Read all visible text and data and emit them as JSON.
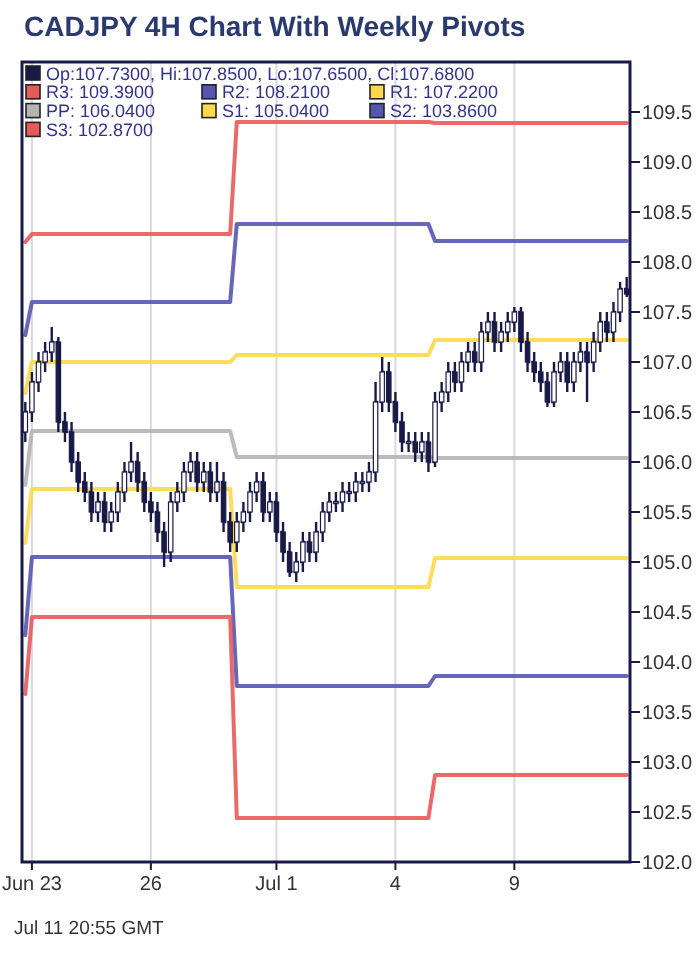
{
  "chart_data": {
    "type": "candlestick",
    "title": "CADJPY 4H Chart With Weekly Pivots",
    "categories": [
      null,
      "Jun 23",
      null,
      null,
      null,
      null,
      null,
      null,
      null,
      null,
      null,
      null,
      null,
      null,
      null,
      null,
      null,
      null,
      null,
      "26",
      null,
      null,
      null,
      null,
      null,
      null,
      null,
      null,
      null,
      null,
      null,
      null,
      null,
      null,
      null,
      null,
      null,
      null,
      "Jul 1",
      null,
      null,
      null,
      null,
      null,
      null,
      null,
      null,
      null,
      null,
      null,
      null,
      null,
      null,
      null,
      null,
      null,
      "4",
      null,
      null,
      null,
      null,
      null,
      null,
      null,
      null,
      null,
      null,
      null,
      null,
      null,
      null,
      null,
      null,
      null,
      "9",
      null,
      null,
      null,
      null,
      null,
      null,
      null,
      null,
      null,
      null,
      null,
      null,
      null,
      null,
      null,
      null,
      null
    ],
    "series": [
      {
        "name": "Op:107.7300, Hi:107.8500, Lo:107.6500, Cl:107.6800",
        "type": "candlestick",
        "color": "#1a1a48",
        "ohlc": [
          [
            106.3,
            106.6,
            106.2,
            106.5
          ],
          [
            106.5,
            106.9,
            106.4,
            106.8
          ],
          [
            106.8,
            107.1,
            106.7,
            107.0
          ],
          [
            107.0,
            107.2,
            106.9,
            107.1
          ],
          [
            107.1,
            107.35,
            107.0,
            107.2
          ],
          [
            107.2,
            107.25,
            106.3,
            106.4
          ],
          [
            106.4,
            106.5,
            106.2,
            106.3
          ],
          [
            106.3,
            106.4,
            105.9,
            106.0
          ],
          [
            106.0,
            106.1,
            105.7,
            105.8
          ],
          [
            105.8,
            105.9,
            105.6,
            105.7
          ],
          [
            105.7,
            105.8,
            105.4,
            105.5
          ],
          [
            105.5,
            105.7,
            105.4,
            105.6
          ],
          [
            105.6,
            105.7,
            105.3,
            105.4
          ],
          [
            105.4,
            105.6,
            105.3,
            105.5
          ],
          [
            105.5,
            105.8,
            105.4,
            105.7
          ],
          [
            105.7,
            106.0,
            105.6,
            105.9
          ],
          [
            105.9,
            106.2,
            105.8,
            106.0
          ],
          [
            106.0,
            106.1,
            105.7,
            105.8
          ],
          [
            105.8,
            105.9,
            105.5,
            105.6
          ],
          [
            105.6,
            105.7,
            105.4,
            105.5
          ],
          [
            105.5,
            105.6,
            105.2,
            105.3
          ],
          [
            105.3,
            105.4,
            104.95,
            105.1
          ],
          [
            105.1,
            105.7,
            105.0,
            105.6
          ],
          [
            105.6,
            105.8,
            105.5,
            105.7
          ],
          [
            105.7,
            106.0,
            105.6,
            105.9
          ],
          [
            105.9,
            106.1,
            105.8,
            106.0
          ],
          [
            106.0,
            106.1,
            105.7,
            105.8
          ],
          [
            105.8,
            106.0,
            105.7,
            105.9
          ],
          [
            105.9,
            106.0,
            105.6,
            105.7
          ],
          [
            105.7,
            106.0,
            105.6,
            105.8
          ],
          [
            105.8,
            105.9,
            105.3,
            105.4
          ],
          [
            105.4,
            105.5,
            105.1,
            105.2
          ],
          [
            105.2,
            105.5,
            105.1,
            105.4
          ],
          [
            105.4,
            105.6,
            105.3,
            105.5
          ],
          [
            105.5,
            105.8,
            105.4,
            105.7
          ],
          [
            105.7,
            105.9,
            105.6,
            105.8
          ],
          [
            105.8,
            105.9,
            105.4,
            105.5
          ],
          [
            105.5,
            105.7,
            105.4,
            105.6
          ],
          [
            105.6,
            105.7,
            105.2,
            105.3
          ],
          [
            105.3,
            105.4,
            105.0,
            105.1
          ],
          [
            105.1,
            105.2,
            104.85,
            104.9
          ],
          [
            104.9,
            105.1,
            104.8,
            105.0
          ],
          [
            105.0,
            105.3,
            104.9,
            105.2
          ],
          [
            105.2,
            105.3,
            105.0,
            105.1
          ],
          [
            105.1,
            105.4,
            105.0,
            105.3
          ],
          [
            105.3,
            105.6,
            105.2,
            105.5
          ],
          [
            105.5,
            105.7,
            105.4,
            105.6
          ],
          [
            105.6,
            105.7,
            105.5,
            105.6
          ],
          [
            105.6,
            105.8,
            105.5,
            105.7
          ],
          [
            105.7,
            105.8,
            105.6,
            105.7
          ],
          [
            105.7,
            105.9,
            105.6,
            105.8
          ],
          [
            105.8,
            105.9,
            105.7,
            105.8
          ],
          [
            105.8,
            106.0,
            105.7,
            105.9
          ],
          [
            105.9,
            106.8,
            105.8,
            106.6
          ],
          [
            106.6,
            107.05,
            106.5,
            106.9
          ],
          [
            106.9,
            107.0,
            106.5,
            106.6
          ],
          [
            106.6,
            106.7,
            106.3,
            106.4
          ],
          [
            106.4,
            106.5,
            106.1,
            106.2
          ],
          [
            106.2,
            106.3,
            106.1,
            106.2
          ],
          [
            106.2,
            106.3,
            106.0,
            106.1
          ],
          [
            106.1,
            106.3,
            106.0,
            106.2
          ],
          [
            106.2,
            106.3,
            105.9,
            106.0
          ],
          [
            106.0,
            106.7,
            105.95,
            106.6
          ],
          [
            106.6,
            106.8,
            106.5,
            106.7
          ],
          [
            106.7,
            107.0,
            106.6,
            106.9
          ],
          [
            106.9,
            107.0,
            106.7,
            106.8
          ],
          [
            106.8,
            107.1,
            106.7,
            107.0
          ],
          [
            107.0,
            107.2,
            106.9,
            107.1
          ],
          [
            107.1,
            107.2,
            106.9,
            107.0
          ],
          [
            107.0,
            107.4,
            106.9,
            107.3
          ],
          [
            107.3,
            107.5,
            107.2,
            107.4
          ],
          [
            107.4,
            107.5,
            107.1,
            107.2
          ],
          [
            107.2,
            107.4,
            107.1,
            107.3
          ],
          [
            107.3,
            107.5,
            107.2,
            107.4
          ],
          [
            107.4,
            107.55,
            107.3,
            107.5
          ],
          [
            107.5,
            107.55,
            107.1,
            107.2
          ],
          [
            107.2,
            107.3,
            106.9,
            107.0
          ],
          [
            107.0,
            107.1,
            106.8,
            106.9
          ],
          [
            106.9,
            107.0,
            106.7,
            106.8
          ],
          [
            106.8,
            106.9,
            106.55,
            106.6
          ],
          [
            106.6,
            107.0,
            106.55,
            106.9
          ],
          [
            106.9,
            107.1,
            106.8,
            107.0
          ],
          [
            107.0,
            107.1,
            106.7,
            106.8
          ],
          [
            106.8,
            107.1,
            106.7,
            107.0
          ],
          [
            107.0,
            107.2,
            106.9,
            107.1
          ],
          [
            107.1,
            107.2,
            106.6,
            107.0
          ],
          [
            107.0,
            107.3,
            106.9,
            107.2
          ],
          [
            107.2,
            107.5,
            107.1,
            107.4
          ],
          [
            107.4,
            107.5,
            107.2,
            107.3
          ],
          [
            107.3,
            107.6,
            107.2,
            107.5
          ],
          [
            107.5,
            107.8,
            107.4,
            107.73
          ],
          [
            107.73,
            107.85,
            107.65,
            107.68
          ]
        ]
      },
      {
        "name": "R3: 109.3900",
        "type": "line",
        "color": "#e85a5a",
        "values": [
          108.2,
          108.28,
          108.28,
          108.28,
          108.28,
          108.28,
          108.28,
          108.28,
          108.28,
          108.28,
          108.28,
          108.28,
          108.28,
          108.28,
          108.28,
          108.28,
          108.28,
          108.28,
          108.28,
          108.28,
          108.28,
          108.28,
          108.28,
          108.28,
          108.28,
          108.28,
          108.28,
          108.28,
          108.28,
          108.28,
          108.28,
          108.28,
          109.4,
          109.4,
          109.4,
          109.4,
          109.4,
          109.4,
          109.4,
          109.4,
          109.4,
          109.4,
          109.4,
          109.4,
          109.4,
          109.4,
          109.4,
          109.4,
          109.4,
          109.4,
          109.4,
          109.4,
          109.4,
          109.4,
          109.4,
          109.4,
          109.4,
          109.4,
          109.4,
          109.4,
          109.4,
          109.4,
          109.39,
          109.39,
          109.39,
          109.39,
          109.39,
          109.39,
          109.39,
          109.39,
          109.39,
          109.39,
          109.39,
          109.39,
          109.39,
          109.39,
          109.39,
          109.39,
          109.39,
          109.39,
          109.39,
          109.39,
          109.39,
          109.39,
          109.39,
          109.39,
          109.39,
          109.39,
          109.39,
          109.39,
          109.39,
          109.39
        ]
      },
      {
        "name": "R2: 108.2100",
        "type": "line",
        "color": "#5656b0",
        "values": [
          107.27,
          107.6,
          107.6,
          107.6,
          107.6,
          107.6,
          107.6,
          107.6,
          107.6,
          107.6,
          107.6,
          107.6,
          107.6,
          107.6,
          107.6,
          107.6,
          107.6,
          107.6,
          107.6,
          107.6,
          107.6,
          107.6,
          107.6,
          107.6,
          107.6,
          107.6,
          107.6,
          107.6,
          107.6,
          107.6,
          107.6,
          107.6,
          108.38,
          108.38,
          108.38,
          108.38,
          108.38,
          108.38,
          108.38,
          108.38,
          108.38,
          108.38,
          108.38,
          108.38,
          108.38,
          108.38,
          108.38,
          108.38,
          108.38,
          108.38,
          108.38,
          108.38,
          108.38,
          108.38,
          108.38,
          108.38,
          108.38,
          108.38,
          108.38,
          108.38,
          108.38,
          108.38,
          108.21,
          108.21,
          108.21,
          108.21,
          108.21,
          108.21,
          108.21,
          108.21,
          108.21,
          108.21,
          108.21,
          108.21,
          108.21,
          108.21,
          108.21,
          108.21,
          108.21,
          108.21,
          108.21,
          108.21,
          108.21,
          108.21,
          108.21,
          108.21,
          108.21,
          108.21,
          108.21,
          108.21,
          108.21,
          108.21
        ]
      },
      {
        "name": "R1: 107.2200",
        "type": "line",
        "color": "#ffd94a",
        "values": [
          106.69,
          107.0,
          107.0,
          107.0,
          107.0,
          107.0,
          107.0,
          107.0,
          107.0,
          107.0,
          107.0,
          107.0,
          107.0,
          107.0,
          107.0,
          107.0,
          107.0,
          107.0,
          107.0,
          107.0,
          107.0,
          107.0,
          107.0,
          107.0,
          107.0,
          107.0,
          107.0,
          107.0,
          107.0,
          107.0,
          107.0,
          107.0,
          107.07,
          107.07,
          107.07,
          107.07,
          107.07,
          107.07,
          107.07,
          107.07,
          107.07,
          107.07,
          107.07,
          107.07,
          107.07,
          107.07,
          107.07,
          107.07,
          107.07,
          107.07,
          107.07,
          107.07,
          107.07,
          107.07,
          107.07,
          107.07,
          107.07,
          107.07,
          107.07,
          107.07,
          107.07,
          107.07,
          107.22,
          107.22,
          107.22,
          107.22,
          107.22,
          107.22,
          107.22,
          107.22,
          107.22,
          107.22,
          107.22,
          107.22,
          107.22,
          107.22,
          107.22,
          107.22,
          107.22,
          107.22,
          107.22,
          107.22,
          107.22,
          107.22,
          107.22,
          107.22,
          107.22,
          107.22,
          107.22,
          107.22,
          107.22,
          107.22
        ]
      },
      {
        "name": "PP: 106.0400",
        "type": "line",
        "color": "#b4b4b4",
        "values": [
          105.77,
          106.31,
          106.31,
          106.31,
          106.31,
          106.31,
          106.31,
          106.31,
          106.31,
          106.31,
          106.31,
          106.31,
          106.31,
          106.31,
          106.31,
          106.31,
          106.31,
          106.31,
          106.31,
          106.31,
          106.31,
          106.31,
          106.31,
          106.31,
          106.31,
          106.31,
          106.31,
          106.31,
          106.31,
          106.31,
          106.31,
          106.31,
          106.05,
          106.05,
          106.05,
          106.05,
          106.05,
          106.05,
          106.05,
          106.05,
          106.05,
          106.05,
          106.05,
          106.05,
          106.05,
          106.05,
          106.05,
          106.05,
          106.05,
          106.05,
          106.05,
          106.05,
          106.05,
          106.05,
          106.05,
          106.05,
          106.05,
          106.05,
          106.05,
          106.05,
          106.05,
          106.05,
          106.04,
          106.04,
          106.04,
          106.04,
          106.04,
          106.04,
          106.04,
          106.04,
          106.04,
          106.04,
          106.04,
          106.04,
          106.04,
          106.04,
          106.04,
          106.04,
          106.04,
          106.04,
          106.04,
          106.04,
          106.04,
          106.04,
          106.04,
          106.04,
          106.04,
          106.04,
          106.04,
          106.04,
          106.04,
          106.04
        ]
      },
      {
        "name": "S1: 105.0400",
        "type": "line",
        "color": "#ffd94a",
        "values": [
          105.19,
          105.73,
          105.73,
          105.73,
          105.73,
          105.73,
          105.73,
          105.73,
          105.73,
          105.73,
          105.73,
          105.73,
          105.73,
          105.73,
          105.73,
          105.73,
          105.73,
          105.73,
          105.73,
          105.73,
          105.73,
          105.73,
          105.73,
          105.73,
          105.73,
          105.73,
          105.73,
          105.73,
          105.73,
          105.73,
          105.73,
          105.73,
          104.75,
          104.75,
          104.75,
          104.75,
          104.75,
          104.75,
          104.75,
          104.75,
          104.75,
          104.75,
          104.75,
          104.75,
          104.75,
          104.75,
          104.75,
          104.75,
          104.75,
          104.75,
          104.75,
          104.75,
          104.75,
          104.75,
          104.75,
          104.75,
          104.75,
          104.75,
          104.75,
          104.75,
          104.75,
          104.75,
          105.04,
          105.04,
          105.04,
          105.04,
          105.04,
          105.04,
          105.04,
          105.04,
          105.04,
          105.04,
          105.04,
          105.04,
          105.04,
          105.04,
          105.04,
          105.04,
          105.04,
          105.04,
          105.04,
          105.04,
          105.04,
          105.04,
          105.04,
          105.04,
          105.04,
          105.04,
          105.04,
          105.04,
          105.04,
          105.04
        ]
      },
      {
        "name": "S2: 103.8600",
        "type": "line",
        "color": "#5656b0",
        "values": [
          104.27,
          105.05,
          105.05,
          105.05,
          105.05,
          105.05,
          105.05,
          105.05,
          105.05,
          105.05,
          105.05,
          105.05,
          105.05,
          105.05,
          105.05,
          105.05,
          105.05,
          105.05,
          105.05,
          105.05,
          105.05,
          105.05,
          105.05,
          105.05,
          105.05,
          105.05,
          105.05,
          105.05,
          105.05,
          105.05,
          105.05,
          105.05,
          103.76,
          103.76,
          103.76,
          103.76,
          103.76,
          103.76,
          103.76,
          103.76,
          103.76,
          103.76,
          103.76,
          103.76,
          103.76,
          103.76,
          103.76,
          103.76,
          103.76,
          103.76,
          103.76,
          103.76,
          103.76,
          103.76,
          103.76,
          103.76,
          103.76,
          103.76,
          103.76,
          103.76,
          103.76,
          103.76,
          103.86,
          103.86,
          103.86,
          103.86,
          103.86,
          103.86,
          103.86,
          103.86,
          103.86,
          103.86,
          103.86,
          103.86,
          103.86,
          103.86,
          103.86,
          103.86,
          103.86,
          103.86,
          103.86,
          103.86,
          103.86,
          103.86,
          103.86,
          103.86,
          103.86,
          103.86,
          103.86,
          103.86,
          103.86,
          103.86
        ]
      },
      {
        "name": "S3: 102.8700",
        "type": "line",
        "color": "#e85a5a",
        "values": [
          103.68,
          104.45,
          104.45,
          104.45,
          104.45,
          104.45,
          104.45,
          104.45,
          104.45,
          104.45,
          104.45,
          104.45,
          104.45,
          104.45,
          104.45,
          104.45,
          104.45,
          104.45,
          104.45,
          104.45,
          104.45,
          104.45,
          104.45,
          104.45,
          104.45,
          104.45,
          104.45,
          104.45,
          104.45,
          104.45,
          104.45,
          104.45,
          102.44,
          102.44,
          102.44,
          102.44,
          102.44,
          102.44,
          102.44,
          102.44,
          102.44,
          102.44,
          102.44,
          102.44,
          102.44,
          102.44,
          102.44,
          102.44,
          102.44,
          102.44,
          102.44,
          102.44,
          102.44,
          102.44,
          102.44,
          102.44,
          102.44,
          102.44,
          102.44,
          102.44,
          102.44,
          102.44,
          102.87,
          102.87,
          102.87,
          102.87,
          102.87,
          102.87,
          102.87,
          102.87,
          102.87,
          102.87,
          102.87,
          102.87,
          102.87,
          102.87,
          102.87,
          102.87,
          102.87,
          102.87,
          102.87,
          102.87,
          102.87,
          102.87,
          102.87,
          102.87,
          102.87,
          102.87,
          102.87,
          102.87,
          102.87,
          102.87
        ]
      }
    ],
    "ylim": [
      102.0,
      110.0
    ],
    "yticks": [
      {
        "value": 102,
        "label": "102.0"
      },
      {
        "value": 102.5,
        "label": "102.5"
      },
      {
        "value": 103,
        "label": "103.0"
      },
      {
        "value": 103.5,
        "label": "103.5"
      },
      {
        "value": 104,
        "label": "104.0"
      },
      {
        "value": 104.5,
        "label": "104.5"
      },
      {
        "value": 105,
        "label": "105.0"
      },
      {
        "value": 105.5,
        "label": "105.5"
      },
      {
        "value": 106,
        "label": "106.0"
      },
      {
        "value": 106.5,
        "label": "106.5"
      },
      {
        "value": 107,
        "label": "107.0"
      },
      {
        "value": 107.5,
        "label": "107.5"
      },
      {
        "value": 108,
        "label": "108.0"
      },
      {
        "value": 108.5,
        "label": "108.5"
      },
      {
        "value": 109,
        "label": "109.0"
      },
      {
        "value": 109.5,
        "label": "109.5"
      }
    ],
    "grid": "x",
    "legend": "top left",
    "annotations": [
      "Jul 11 20:55 GMT"
    ]
  }
}
